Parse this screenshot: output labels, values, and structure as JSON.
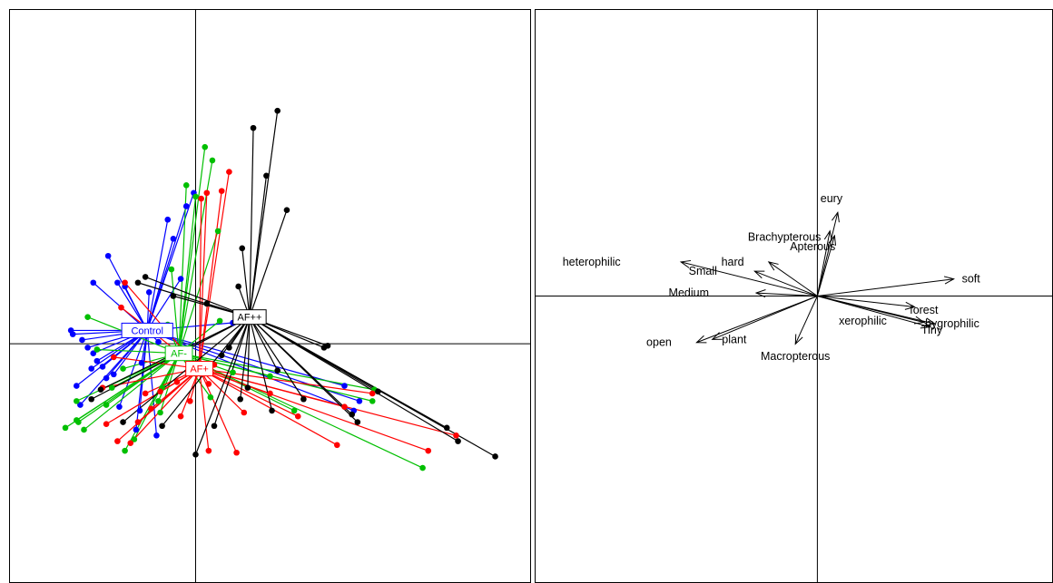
{
  "chart_data": [
    {
      "type": "scatter",
      "title": "",
      "xlabel": "",
      "ylabel": "",
      "xlim": [
        -1.0,
        1.8
      ],
      "ylim": [
        -1.25,
        1.75
      ],
      "grid": false,
      "groups": [
        {
          "name": "Control",
          "color": "#0000ff",
          "centroid": [
            -0.26,
            0.07
          ],
          "points": [
            [
              -0.67,
              0.07
            ],
            [
              -0.66,
              0.05
            ],
            [
              -0.61,
              0.02
            ],
            [
              -0.58,
              -0.02
            ],
            [
              -0.55,
              -0.05
            ],
            [
              -0.53,
              -0.09
            ],
            [
              -0.56,
              -0.13
            ],
            [
              -0.48,
              -0.18
            ],
            [
              -0.44,
              -0.16
            ],
            [
              -0.64,
              -0.22
            ],
            [
              -0.62,
              -0.32
            ],
            [
              -0.41,
              -0.33
            ],
            [
              -0.32,
              -0.45
            ],
            [
              -0.21,
              -0.48
            ],
            [
              -0.3,
              -0.35
            ],
            [
              -0.47,
              0.46
            ],
            [
              -0.42,
              0.32
            ],
            [
              -0.38,
              0.3
            ],
            [
              -0.25,
              0.27
            ],
            [
              -0.08,
              0.34
            ],
            [
              -0.12,
              0.55
            ],
            [
              -0.05,
              0.72
            ],
            [
              -0.01,
              0.79
            ],
            [
              -0.15,
              0.65
            ],
            [
              -0.55,
              0.32
            ],
            [
              -0.2,
              0.01
            ],
            [
              -0.29,
              -0.1
            ],
            [
              -0.5,
              -0.12
            ],
            [
              0.8,
              -0.22
            ],
            [
              0.85,
              -0.35
            ],
            [
              0.88,
              -0.3
            ],
            [
              0.2,
              0.11
            ]
          ]
        },
        {
          "name": "AF-",
          "color": "#00bf00",
          "centroid": [
            -0.09,
            -0.05
          ],
          "points": [
            [
              0.05,
              1.03
            ],
            [
              0.09,
              0.96
            ],
            [
              -0.05,
              0.83
            ],
            [
              0.0,
              0.77
            ],
            [
              0.12,
              0.59
            ],
            [
              -0.13,
              0.39
            ],
            [
              -0.58,
              0.14
            ],
            [
              -0.15,
              0.1
            ],
            [
              0.13,
              0.12
            ],
            [
              -0.53,
              -0.03
            ],
            [
              -0.39,
              -0.13
            ],
            [
              -0.45,
              -0.23
            ],
            [
              -0.48,
              -0.32
            ],
            [
              -0.64,
              -0.3
            ],
            [
              -0.64,
              -0.4
            ],
            [
              -0.63,
              -0.41
            ],
            [
              -0.7,
              -0.44
            ],
            [
              -0.6,
              -0.45
            ],
            [
              -0.33,
              -0.5
            ],
            [
              -0.38,
              -0.56
            ],
            [
              -0.19,
              -0.36
            ],
            [
              -0.2,
              -0.3
            ],
            [
              -0.18,
              -0.23
            ],
            [
              0.08,
              -0.28
            ],
            [
              0.2,
              -0.15
            ],
            [
              0.53,
              -0.35
            ],
            [
              0.95,
              -0.3
            ],
            [
              0.96,
              -0.24
            ],
            [
              1.22,
              -0.65
            ],
            [
              0.4,
              -0.17
            ]
          ]
        },
        {
          "name": "AF+",
          "color": "#ff0000",
          "centroid": [
            0.02,
            -0.13
          ],
          "points": [
            [
              0.18,
              0.9
            ],
            [
              0.14,
              0.8
            ],
            [
              0.06,
              0.79
            ],
            [
              0.03,
              0.76
            ],
            [
              -0.38,
              0.32
            ],
            [
              -0.4,
              0.19
            ],
            [
              -0.44,
              -0.07
            ],
            [
              -0.5,
              -0.23
            ],
            [
              -0.48,
              -0.42
            ],
            [
              -0.42,
              -0.51
            ],
            [
              -0.35,
              -0.52
            ],
            [
              -0.31,
              -0.41
            ],
            [
              -0.24,
              -0.34
            ],
            [
              -0.27,
              -0.26
            ],
            [
              -0.08,
              -0.38
            ],
            [
              -0.03,
              -0.3
            ],
            [
              0.07,
              -0.56
            ],
            [
              0.22,
              -0.57
            ],
            [
              0.26,
              -0.36
            ],
            [
              0.4,
              -0.26
            ],
            [
              0.55,
              -0.38
            ],
            [
              0.76,
              -0.53
            ],
            [
              0.8,
              -0.33
            ],
            [
              0.95,
              -0.26
            ],
            [
              1.25,
              -0.56
            ],
            [
              1.4,
              -0.48
            ],
            [
              -0.19,
              -0.25
            ],
            [
              -0.1,
              -0.2
            ],
            [
              0.07,
              -0.21
            ],
            [
              0.02,
              -0.12
            ],
            [
              0.1,
              -0.11
            ]
          ]
        },
        {
          "name": "AF++",
          "color": "#000000",
          "centroid": [
            0.29,
            0.14
          ],
          "points": [
            [
              0.44,
              1.22
            ],
            [
              0.31,
              1.13
            ],
            [
              0.38,
              0.88
            ],
            [
              0.49,
              0.7
            ],
            [
              0.25,
              0.5
            ],
            [
              -0.31,
              0.32
            ],
            [
              -0.12,
              0.25
            ],
            [
              0.06,
              0.21
            ],
            [
              0.23,
              0.3
            ],
            [
              0.69,
              -0.02
            ],
            [
              0.71,
              -0.01
            ],
            [
              0.44,
              -0.14
            ],
            [
              0.98,
              -0.25
            ],
            [
              0.84,
              -0.37
            ],
            [
              0.87,
              -0.41
            ],
            [
              1.35,
              -0.44
            ],
            [
              1.61,
              -0.59
            ],
            [
              1.41,
              -0.51
            ],
            [
              0.58,
              -0.29
            ],
            [
              0.24,
              -0.29
            ],
            [
              -0.18,
              -0.43
            ],
            [
              -0.39,
              -0.41
            ],
            [
              -0.56,
              -0.29
            ],
            [
              -0.51,
              -0.24
            ],
            [
              0.0,
              -0.58
            ],
            [
              0.1,
              -0.43
            ],
            [
              0.41,
              -0.35
            ],
            [
              0.28,
              -0.23
            ],
            [
              0.18,
              -0.02
            ],
            [
              0.14,
              -0.06
            ],
            [
              -0.27,
              0.35
            ]
          ]
        }
      ]
    },
    {
      "type": "biplot",
      "title": "",
      "xlabel": "",
      "ylabel": "",
      "xlim": [
        -1.8,
        1.5
      ],
      "ylim": [
        -1.85,
        1.85
      ],
      "grid": false,
      "vectors": [
        {
          "label": "soft",
          "x": 0.87,
          "y": 0.11,
          "label_x": 0.98,
          "label_y": 0.11
        },
        {
          "label": "forest",
          "x": 0.62,
          "y": -0.07,
          "label_x": 0.68,
          "label_y": -0.09
        },
        {
          "label": "hygrophilic",
          "x": 0.75,
          "y": -0.18,
          "label_x": 0.86,
          "label_y": -0.18
        },
        {
          "label": "Tiny",
          "x": 0.72,
          "y": -0.2,
          "label_x": 0.73,
          "label_y": -0.22
        },
        {
          "label": "xerophilic",
          "x": 0.68,
          "y": -0.17,
          "label_x": 0.29,
          "label_y": -0.16
        },
        {
          "label": "eury",
          "x": 0.13,
          "y": 0.54,
          "label_x": 0.09,
          "label_y": 0.63
        },
        {
          "label": "Brachypterous",
          "x": 0.08,
          "y": 0.42,
          "label_x": -0.21,
          "label_y": 0.38
        },
        {
          "label": "Apterous",
          "x": 0.11,
          "y": 0.39,
          "label_x": -0.03,
          "label_y": 0.32
        },
        {
          "label": "hard",
          "x": -0.31,
          "y": 0.22,
          "label_x": -0.54,
          "label_y": 0.22
        },
        {
          "label": "Small",
          "x": -0.4,
          "y": 0.16,
          "label_x": -0.73,
          "label_y": 0.16
        },
        {
          "label": "heterophilic",
          "x": -0.87,
          "y": 0.22,
          "label_x": -1.44,
          "label_y": 0.22
        },
        {
          "label": "Medium",
          "x": -0.39,
          "y": 0.02,
          "label_x": -0.82,
          "label_y": 0.02
        },
        {
          "label": "open",
          "x": -0.77,
          "y": -0.3,
          "label_x": -1.01,
          "label_y": -0.3
        },
        {
          "label": "plant",
          "x": -0.67,
          "y": -0.28,
          "label_x": -0.53,
          "label_y": -0.28
        },
        {
          "label": "Macropterous",
          "x": -0.14,
          "y": -0.31,
          "label_x": -0.14,
          "label_y": -0.39
        }
      ]
    }
  ]
}
